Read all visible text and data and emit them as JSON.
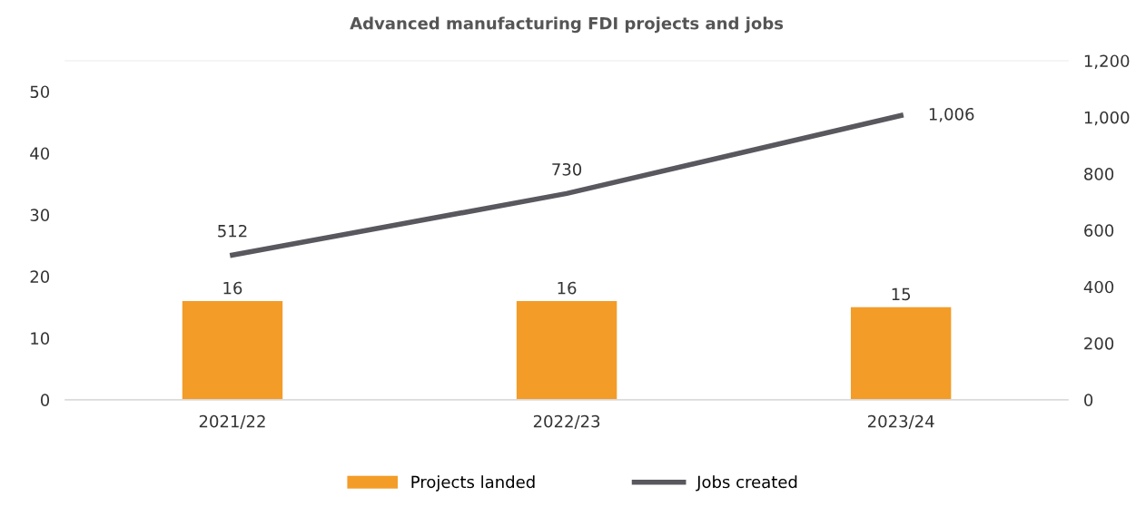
{
  "chart_data": {
    "type": "bar",
    "title": "Advanced manufacturing FDI projects and jobs",
    "categories": [
      "2021/22",
      "2022/23",
      "2023/24"
    ],
    "series": [
      {
        "name": "Projects landed",
        "color": "#f39c28",
        "values": [
          16,
          16,
          15
        ]
      },
      {
        "name": "Jobs created",
        "type": "line",
        "axis": "y2",
        "color": "#58585e",
        "values": [
          512,
          730,
          1006
        ],
        "value_labels": [
          "512",
          "730",
          "1,006"
        ]
      }
    ],
    "ylim": [
      0,
      55
    ],
    "yticks": [
      0,
      10,
      20,
      30,
      40,
      50
    ],
    "y2lim": [
      0,
      1200
    ],
    "y2ticks": [
      0,
      {
        "value": 200,
        "label": "200"
      },
      {
        "value": 400,
        "label": "400"
      },
      {
        "value": 600,
        "label": "600"
      },
      {
        "value": 800,
        "label": "800"
      },
      {
        "value": 1000,
        "label": "1,000"
      },
      {
        "value": 1200,
        "label": "1,200"
      }
    ],
    "data_labels": true,
    "legend": "bottom",
    "grid": false,
    "marker": "none",
    "line_style": "solid"
  }
}
